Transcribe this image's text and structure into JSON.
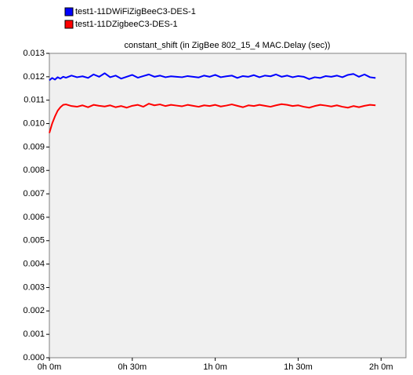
{
  "chart_data": {
    "type": "line",
    "title": "constant_shift (in ZigBee 802_15_4 MAC.Delay (sec))",
    "x": [
      0,
      1,
      2,
      3,
      4,
      5,
      6,
      8,
      10,
      12,
      14,
      16,
      18,
      20,
      22,
      24,
      26,
      28,
      30,
      32,
      34,
      36,
      38,
      40,
      42,
      44,
      46,
      48,
      50,
      52,
      54,
      56,
      58,
      60,
      62,
      64,
      66,
      68,
      70,
      72,
      74,
      76,
      78,
      80,
      82,
      84,
      86,
      88,
      90,
      92,
      94,
      96,
      98,
      100,
      102,
      104,
      106,
      108,
      110,
      112,
      114,
      116,
      118
    ],
    "series": [
      {
        "name": "test1-11DWiFiZigBeeC3-DES-1",
        "color": "#0000ff",
        "values": [
          0.01185,
          0.01195,
          0.01188,
          0.01198,
          0.01192,
          0.012,
          0.01196,
          0.01205,
          0.01198,
          0.01202,
          0.01195,
          0.0121,
          0.012,
          0.01215,
          0.01198,
          0.01205,
          0.01192,
          0.012,
          0.01208,
          0.01196,
          0.01203,
          0.0121,
          0.012,
          0.01205,
          0.01198,
          0.01202,
          0.012,
          0.01198,
          0.01203,
          0.012,
          0.01197,
          0.01205,
          0.012,
          0.01208,
          0.01198,
          0.01202,
          0.01205,
          0.01195,
          0.01203,
          0.012,
          0.01207,
          0.01198,
          0.01205,
          0.01202,
          0.0121,
          0.012,
          0.01205,
          0.01198,
          0.01203,
          0.012,
          0.0119,
          0.01198,
          0.01195,
          0.01203,
          0.012,
          0.01205,
          0.01198,
          0.01208,
          0.01212,
          0.012,
          0.0121,
          0.01198,
          0.01195
        ]
      },
      {
        "name": "test1-11DZigbeeC3-DES-1",
        "color": "#ff0000",
        "values": [
          0.0096,
          0.01,
          0.0103,
          0.01055,
          0.0107,
          0.0108,
          0.01082,
          0.01075,
          0.01072,
          0.01078,
          0.0107,
          0.0108,
          0.01076,
          0.01073,
          0.01078,
          0.0107,
          0.01075,
          0.01068,
          0.01076,
          0.0108,
          0.01072,
          0.01085,
          0.01078,
          0.01082,
          0.01075,
          0.0108,
          0.01077,
          0.01074,
          0.0108,
          0.01076,
          0.01072,
          0.01078,
          0.01075,
          0.0108,
          0.01073,
          0.01077,
          0.01082,
          0.01076,
          0.0107,
          0.01078,
          0.01075,
          0.0108,
          0.01076,
          0.01072,
          0.01078,
          0.01083,
          0.0108,
          0.01075,
          0.01078,
          0.01072,
          0.01068,
          0.01075,
          0.0108,
          0.01077,
          0.01073,
          0.01078,
          0.01072,
          0.01068,
          0.01075,
          0.0107,
          0.01076,
          0.0108,
          0.01078
        ]
      }
    ],
    "xlim": [
      0,
      129
    ],
    "xticks": [
      {
        "value": 0,
        "label": "0h 0m"
      },
      {
        "value": 30,
        "label": "0h 30m"
      },
      {
        "value": 60,
        "label": "1h 0m"
      },
      {
        "value": 90,
        "label": "1h 30m"
      },
      {
        "value": 120,
        "label": "2h 0m"
      }
    ],
    "ylim": [
      0,
      0.013
    ],
    "yticks": [
      {
        "value": 0,
        "label": "0.000"
      },
      0.001,
      0.002,
      0.003,
      0.004,
      0.005,
      0.006,
      0.007,
      0.008,
      0.009,
      {
        "value": 0.01,
        "label": "0.010"
      },
      0.011,
      0.012,
      0.013
    ],
    "grid": false
  }
}
